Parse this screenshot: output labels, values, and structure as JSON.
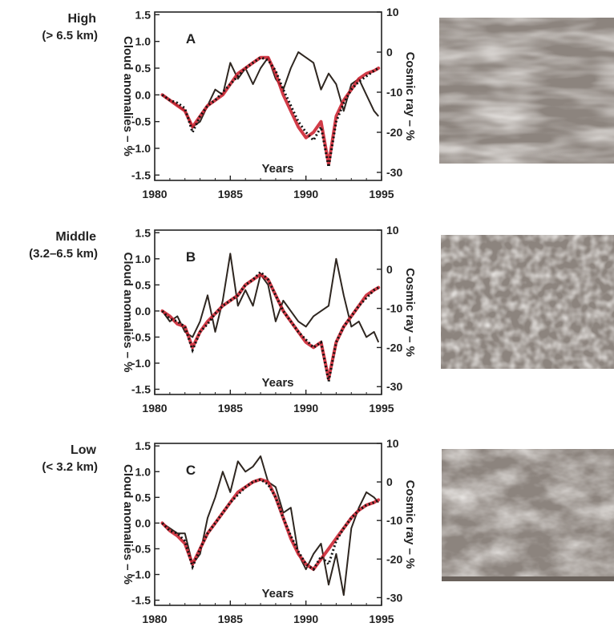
{
  "colors": {
    "monthly_line": "#2e2620",
    "smooth_line": "#cc2633",
    "dotted_line": "#111111",
    "axis": "#222222",
    "photo_base": "#8c847e"
  },
  "photo_icons": [
    "high-cloud-photo",
    "middle-cloud-photo",
    "low-cloud-photo"
  ],
  "chart_data": [
    {
      "type": "line",
      "panel_label": "A",
      "altitude_name": "High",
      "altitude_range": "(> 6.5 km)",
      "xlabel": "Years",
      "ylabel": "Cloud anomalies – %",
      "y2label": "Cosmic ray – %",
      "xlim": [
        1980,
        1995
      ],
      "ylim": [
        -1.6,
        1.55
      ],
      "y2lim": [
        -32,
        10
      ],
      "x_ticks": [
        "1980",
        "1985",
        "1990",
        "1995"
      ],
      "y_ticks": [
        "1.5",
        "1.0",
        "0.5",
        "0.0",
        "-0.5",
        "-1.0",
        "-1.5"
      ],
      "y2_ticks": [
        "10",
        "0",
        "-10",
        "-20",
        "-30"
      ],
      "series": [
        {
          "style": "monthly",
          "x": [
            1980.5,
            1981.0,
            1981.5,
            1982.0,
            1982.5,
            1983.0,
            1983.5,
            1984.0,
            1984.5,
            1985.0,
            1985.5,
            1986.0,
            1986.5,
            1987.0,
            1987.5,
            1988.0,
            1988.5,
            1989.0,
            1989.5,
            1990.0,
            1990.5,
            1991.0,
            1991.5,
            1992.0,
            1992.5,
            1993.0,
            1993.5,
            1994.0,
            1994.5,
            1994.8
          ],
          "y": [
            0.0,
            -0.1,
            -0.2,
            -0.3,
            -0.6,
            -0.5,
            -0.2,
            0.1,
            0.0,
            0.6,
            0.3,
            0.5,
            0.2,
            0.5,
            0.7,
            0.3,
            0.1,
            0.5,
            0.8,
            0.7,
            0.6,
            0.1,
            0.4,
            0.2,
            -0.3,
            0.2,
            0.3,
            0.0,
            -0.3,
            -0.4
          ]
        },
        {
          "style": "smoothed",
          "x": [
            1980.5,
            1981.0,
            1981.5,
            1982.0,
            1982.5,
            1983.0,
            1983.5,
            1984.0,
            1984.5,
            1985.0,
            1985.5,
            1986.0,
            1986.5,
            1987.0,
            1987.5,
            1988.0,
            1988.5,
            1989.0,
            1989.5,
            1990.0,
            1990.5,
            1991.0,
            1991.5,
            1992.0,
            1992.5,
            1993.0,
            1993.5,
            1994.0,
            1994.5,
            1994.8
          ],
          "y": [
            0.0,
            -0.1,
            -0.2,
            -0.3,
            -0.6,
            -0.4,
            -0.2,
            -0.1,
            0.0,
            0.2,
            0.4,
            0.5,
            0.6,
            0.7,
            0.7,
            0.4,
            0.0,
            -0.3,
            -0.6,
            -0.8,
            -0.7,
            -0.5,
            -1.3,
            -0.4,
            -0.1,
            0.1,
            0.3,
            0.4,
            0.45,
            0.5
          ]
        },
        {
          "style": "dotted",
          "x": [
            1980.5,
            1981.0,
            1981.5,
            1982.0,
            1982.5,
            1983.0,
            1983.5,
            1984.0,
            1984.5,
            1985.0,
            1985.5,
            1986.0,
            1986.5,
            1987.0,
            1987.5,
            1988.0,
            1988.5,
            1989.0,
            1989.5,
            1990.0,
            1990.5,
            1991.0,
            1991.5,
            1992.0,
            1992.5,
            1993.0,
            1993.5,
            1994.0,
            1994.5,
            1994.8
          ],
          "y": [
            0.0,
            -0.1,
            -0.15,
            -0.25,
            -0.7,
            -0.4,
            -0.2,
            -0.1,
            0.05,
            0.2,
            0.35,
            0.5,
            0.6,
            0.7,
            0.65,
            0.45,
            0.1,
            -0.2,
            -0.5,
            -0.7,
            -0.85,
            -0.6,
            -1.35,
            -0.5,
            -0.15,
            0.1,
            0.25,
            0.35,
            0.45,
            0.5
          ]
        }
      ]
    },
    {
      "type": "line",
      "panel_label": "B",
      "altitude_name": "Middle",
      "altitude_range": "(3.2–6.5 km)",
      "xlabel": "Years",
      "ylabel": "Cloud anomalies – %",
      "y2label": "Cosmic ray – %",
      "xlim": [
        1980,
        1995
      ],
      "ylim": [
        -1.6,
        1.55
      ],
      "y2lim": [
        -32,
        10
      ],
      "x_ticks": [
        "1980",
        "1985",
        "1990",
        "1995"
      ],
      "y_ticks": [
        "1.5",
        "1.0",
        "0.5",
        "0.0",
        "-0.5",
        "-1.0",
        "-1.5"
      ],
      "y2_ticks": [
        "10",
        "0",
        "-10",
        "-20",
        "-30"
      ],
      "series": [
        {
          "style": "monthly",
          "x": [
            1980.5,
            1981.0,
            1981.5,
            1982.0,
            1982.5,
            1983.0,
            1983.5,
            1984.0,
            1984.5,
            1985.0,
            1985.5,
            1986.0,
            1986.5,
            1987.0,
            1987.5,
            1988.0,
            1988.5,
            1989.0,
            1989.5,
            1990.0,
            1990.5,
            1991.0,
            1991.5,
            1992.0,
            1992.5,
            1993.0,
            1993.5,
            1994.0,
            1994.5,
            1994.8
          ],
          "y": [
            0.0,
            -0.2,
            -0.1,
            -0.4,
            -0.5,
            -0.2,
            0.3,
            -0.4,
            0.2,
            1.1,
            0.1,
            0.4,
            0.1,
            0.7,
            0.5,
            -0.2,
            0.2,
            0.0,
            -0.2,
            -0.3,
            -0.1,
            0.0,
            0.1,
            1.0,
            0.3,
            -0.3,
            -0.2,
            -0.5,
            -0.4,
            -0.6
          ]
        },
        {
          "style": "smoothed",
          "x": [
            1980.5,
            1981.0,
            1981.5,
            1982.0,
            1982.5,
            1983.0,
            1983.5,
            1984.0,
            1984.5,
            1985.0,
            1985.5,
            1986.0,
            1986.5,
            1987.0,
            1987.5,
            1988.0,
            1988.5,
            1989.0,
            1989.5,
            1990.0,
            1990.5,
            1991.0,
            1991.5,
            1992.0,
            1992.5,
            1993.0,
            1993.5,
            1994.0,
            1994.5,
            1994.8
          ],
          "y": [
            0.0,
            -0.1,
            -0.25,
            -0.3,
            -0.7,
            -0.4,
            -0.2,
            -0.05,
            0.1,
            0.2,
            0.3,
            0.5,
            0.6,
            0.7,
            0.6,
            0.3,
            0.0,
            -0.2,
            -0.4,
            -0.6,
            -0.7,
            -0.6,
            -1.3,
            -0.6,
            -0.3,
            -0.1,
            0.1,
            0.3,
            0.4,
            0.45
          ]
        },
        {
          "style": "dotted",
          "x": [
            1980.5,
            1981.0,
            1981.5,
            1982.0,
            1982.5,
            1983.0,
            1983.5,
            1984.0,
            1984.5,
            1985.0,
            1985.5,
            1986.0,
            1986.5,
            1987.0,
            1987.5,
            1988.0,
            1988.5,
            1989.0,
            1989.5,
            1990.0,
            1990.5,
            1991.0,
            1991.5,
            1992.0,
            1992.5,
            1993.0,
            1993.5,
            1994.0,
            1994.5,
            1994.8
          ],
          "y": [
            0.0,
            -0.15,
            -0.2,
            -0.3,
            -0.75,
            -0.4,
            -0.25,
            -0.05,
            0.1,
            0.2,
            0.3,
            0.5,
            0.6,
            0.75,
            0.6,
            0.3,
            0.0,
            -0.2,
            -0.4,
            -0.55,
            -0.7,
            -0.6,
            -1.35,
            -0.6,
            -0.3,
            -0.1,
            0.1,
            0.25,
            0.4,
            0.45
          ]
        }
      ]
    },
    {
      "type": "line",
      "panel_label": "C",
      "altitude_name": "Low",
      "altitude_range": "(< 3.2 km)",
      "xlabel": "Years",
      "ylabel": "Cloud anomalies – %",
      "y2label": "Cosmic ray – %",
      "xlim": [
        1980,
        1995
      ],
      "ylim": [
        -1.6,
        1.55
      ],
      "y2lim": [
        -32,
        10
      ],
      "x_ticks": [
        "1980",
        "1985",
        "1990",
        "1995"
      ],
      "y_ticks": [
        "1.5",
        "1.0",
        "0.5",
        "0.0",
        "-0.5",
        "-1.0",
        "-1.5"
      ],
      "y2_ticks": [
        "10",
        "0",
        "-10",
        "-20",
        "-30"
      ],
      "series": [
        {
          "style": "monthly",
          "x": [
            1980.5,
            1981.0,
            1981.5,
            1982.0,
            1982.5,
            1983.0,
            1983.5,
            1984.0,
            1984.5,
            1985.0,
            1985.5,
            1986.0,
            1986.5,
            1987.0,
            1987.5,
            1988.0,
            1988.5,
            1989.0,
            1989.5,
            1990.0,
            1990.5,
            1991.0,
            1991.5,
            1992.0,
            1992.5,
            1993.0,
            1993.5,
            1994.0,
            1994.5,
            1994.8
          ],
          "y": [
            0.0,
            -0.1,
            -0.2,
            -0.2,
            -0.8,
            -0.6,
            0.1,
            0.5,
            1.0,
            0.6,
            1.2,
            1.0,
            1.1,
            1.3,
            0.8,
            0.7,
            0.2,
            0.3,
            -0.6,
            -0.9,
            -0.6,
            -0.4,
            -1.2,
            -0.6,
            -1.4,
            -0.1,
            0.3,
            0.6,
            0.5,
            0.4
          ]
        },
        {
          "style": "smoothed",
          "x": [
            1980.5,
            1981.0,
            1981.5,
            1982.0,
            1982.5,
            1983.0,
            1983.5,
            1984.0,
            1984.5,
            1985.0,
            1985.5,
            1986.0,
            1986.5,
            1987.0,
            1987.5,
            1988.0,
            1988.5,
            1989.0,
            1989.5,
            1990.0,
            1990.5,
            1991.0,
            1991.5,
            1992.0,
            1992.5,
            1993.0,
            1993.5,
            1994.0,
            1994.5,
            1994.8
          ],
          "y": [
            0.0,
            -0.15,
            -0.25,
            -0.4,
            -0.8,
            -0.5,
            -0.2,
            0.0,
            0.2,
            0.4,
            0.6,
            0.7,
            0.8,
            0.85,
            0.8,
            0.5,
            0.1,
            -0.3,
            -0.6,
            -0.8,
            -0.9,
            -0.7,
            -0.5,
            -0.3,
            -0.1,
            0.1,
            0.25,
            0.35,
            0.4,
            0.45
          ]
        },
        {
          "style": "dotted",
          "x": [
            1980.5,
            1981.0,
            1981.5,
            1982.0,
            1982.5,
            1983.0,
            1983.5,
            1984.0,
            1984.5,
            1985.0,
            1985.5,
            1986.0,
            1986.5,
            1987.0,
            1987.5,
            1988.0,
            1988.5,
            1989.0,
            1989.5,
            1990.0,
            1990.5,
            1991.0,
            1991.5,
            1992.0,
            1992.5,
            1993.0,
            1993.5,
            1994.0,
            1994.5,
            1994.8
          ],
          "y": [
            0.0,
            -0.15,
            -0.2,
            -0.35,
            -0.85,
            -0.5,
            -0.2,
            0.0,
            0.2,
            0.4,
            0.55,
            0.7,
            0.8,
            0.85,
            0.75,
            0.5,
            0.1,
            -0.25,
            -0.55,
            -0.8,
            -0.9,
            -0.65,
            -0.8,
            -0.35,
            -0.1,
            0.1,
            0.25,
            0.35,
            0.4,
            0.45
          ]
        }
      ]
    }
  ]
}
